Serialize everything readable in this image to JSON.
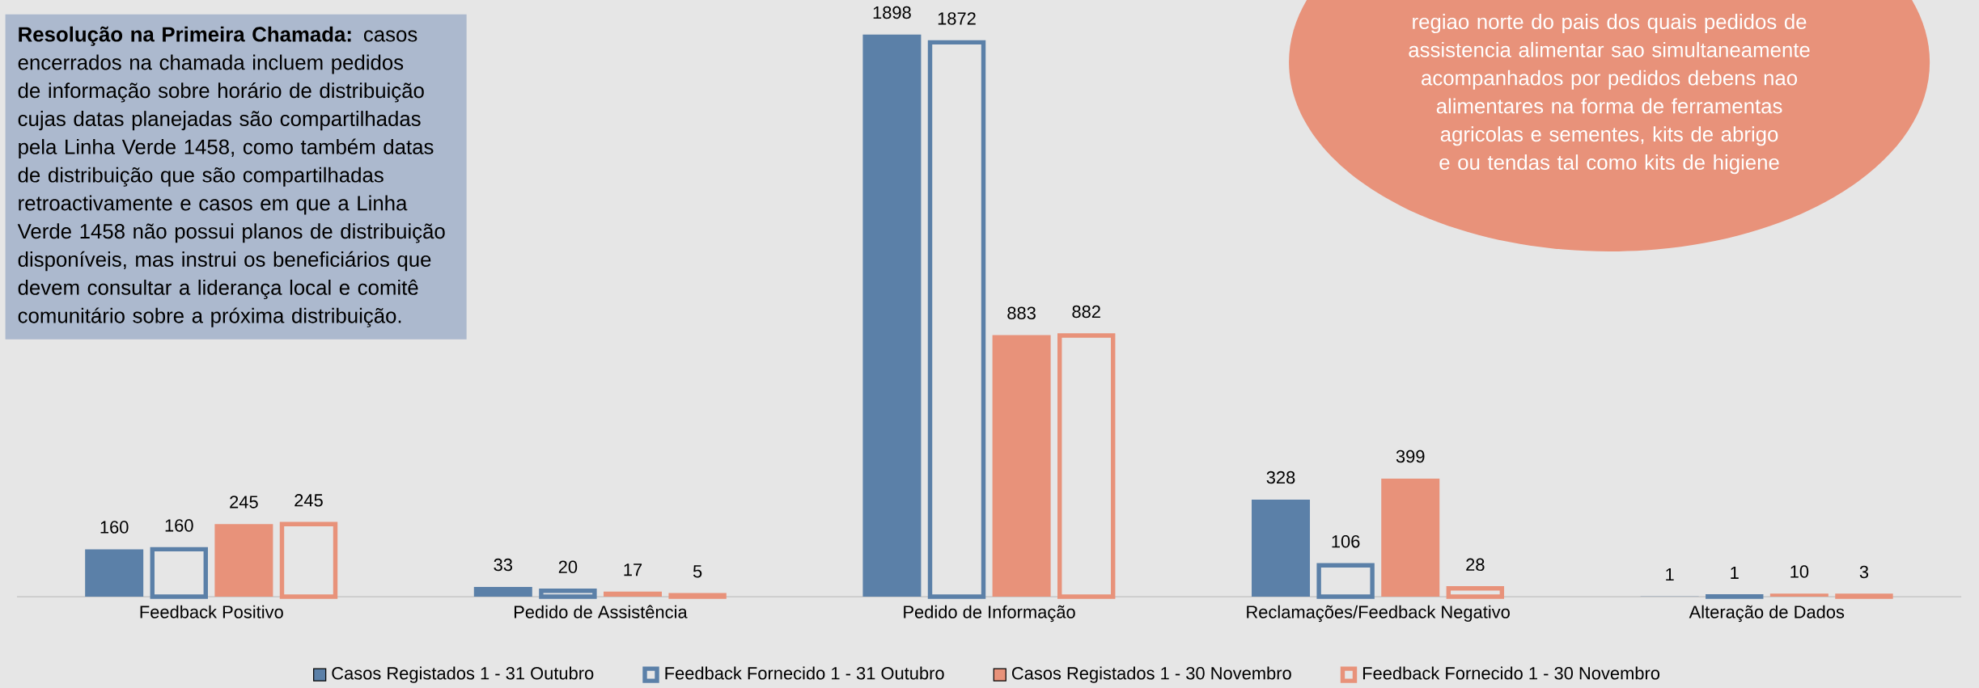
{
  "chart_data": {
    "type": "bar",
    "categories": [
      "Feedback Positivo",
      "Pedido de Assistência",
      "Pedido de Informação",
      "Reclamações/Feedback Negativo",
      "Alteração de Dados"
    ],
    "series": [
      {
        "name": "Casos Registados 1 - 31 Outubro",
        "color": "#5b80a8",
        "values": [
          160,
          33,
          1898,
          328,
          1
        ]
      },
      {
        "name": "Feedback Fornecido 1 - 31 Outubro",
        "color": "#5b80a8",
        "values": [
          160,
          20,
          1872,
          106,
          1
        ]
      },
      {
        "name": "Casos Registados 1 - 30 Novembro",
        "color": "#e8927a",
        "values": [
          245,
          17,
          883,
          399,
          10
        ]
      },
      {
        "name": "Feedback Fornecido 1 - 30 Novembro",
        "color": "#e8927a",
        "values": [
          245,
          5,
          882,
          28,
          3
        ]
      }
    ],
    "data_labels": true,
    "legend": "bottom",
    "annotations": [
      "**Resolução na Primeira Chamada:** casos encerrados na chamada incluem pedidos de informação sobre horário de distribuição cujas datas planejadas são compartilhadas pela Linha Verde 1458, como também datas de distribuição que são compartilhadas retroactivamente e casos em que a Linha Verde 1458 não possui planos de distribuição disponíveis, mas instrui os beneficiários que devem consultar a liderança local e comitê comunitário sobre a próxima distribuição.",
      "regiao norte do pais dos quais pedidos de assistencia alimentar sao simultaneamente acompanhados por pedidos debens nao alimentares na forma de ferramentas agricolas e sementes, kits de abrigo e ou tendas tal como kits de higiene"
    ]
  }
}
